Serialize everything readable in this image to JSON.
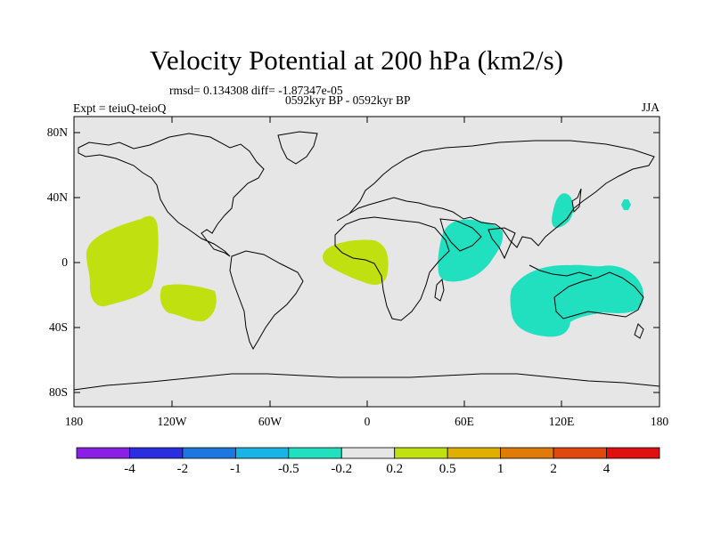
{
  "title": "Velocity Potential at 200 hPa (km2/s)",
  "stats": "rmsd= 0.134308 diff= -1.87347e-05",
  "expt": "Expt = teiuQ-teioQ",
  "period": "0592kyr BP - 0592kyr BP",
  "season": "JJA",
  "lat_ticks": [
    "80N",
    "40N",
    "0",
    "40S",
    "80S"
  ],
  "lon_ticks": [
    "180",
    "120W",
    "60W",
    "0",
    "60E",
    "120E",
    "180"
  ],
  "colorbar": {
    "colors": [
      "#8a20e6",
      "#2a2ee0",
      "#1c78e0",
      "#18b4e6",
      "#20e0c0",
      "#e6e6e6",
      "#c0e010",
      "#e0b000",
      "#e07a08",
      "#e04810",
      "#e01010"
    ],
    "labels": [
      "-4",
      "-2",
      "-1",
      "-0.5",
      "-0.2",
      "0.2",
      "0.5",
      "1",
      "2",
      "4"
    ]
  },
  "colors": {
    "ocean_land": "#e6e6e6",
    "positive": "#c0e010",
    "negative": "#20e0c0",
    "coastline": "#000000"
  }
}
